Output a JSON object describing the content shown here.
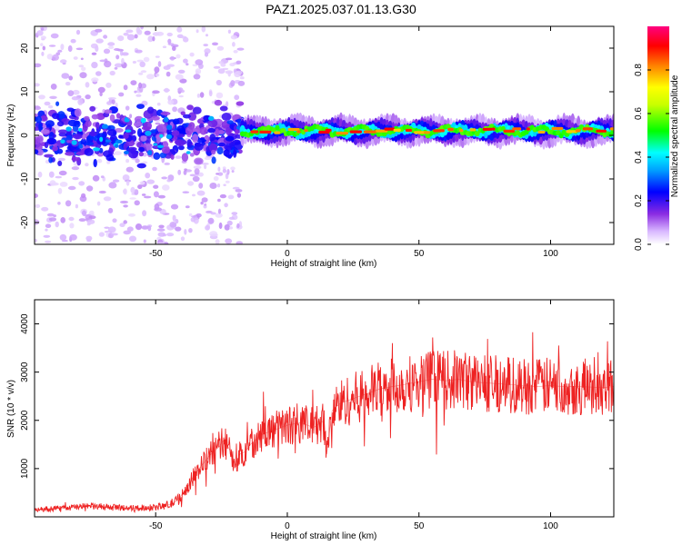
{
  "title": "PAZ1.2025.037.01.13.G30",
  "chart_data": [
    {
      "type": "heatmap",
      "xlabel": "Height of straight line (km)",
      "ylabel": "Frequency (Hz)",
      "xlim": [
        -96,
        124
      ],
      "ylim": [
        -25,
        25
      ],
      "xticks": [
        -50,
        0,
        50,
        100
      ],
      "yticks": [
        -20,
        -10,
        0,
        10,
        20
      ],
      "colorbar": {
        "label": "Normalized spectral amplitude",
        "range": [
          0,
          1
        ],
        "ticks": [
          "0.0",
          "0.2",
          "0.4",
          "0.6",
          "0.8"
        ],
        "colormap": [
          "#ffffff",
          "#8a2be2",
          "#0000ff",
          "#00ffff",
          "#00ff00",
          "#ffff00",
          "#ff8000",
          "#ff0000",
          "#ff0080"
        ]
      },
      "features": {
        "scatter_region_x": [
          -96,
          -17
        ],
        "scatter_spread_hz": 25,
        "coherent_line_x": [
          -17,
          124
        ],
        "coherent_line_freq_hz": 1
      }
    },
    {
      "type": "line",
      "xlabel": "Height of straight line (km)",
      "ylabel": "SNR (10 * v/v)",
      "xlim": [
        -96,
        124
      ],
      "ylim": [
        0,
        4500
      ],
      "xticks": [
        -50,
        0,
        50,
        100
      ],
      "yticks": [
        1000,
        2000,
        3000,
        4000
      ],
      "color": "#ee2222",
      "series": [
        {
          "x": [
            -96,
            -85,
            -75,
            -65,
            -55,
            -50,
            -45,
            -42,
            -38,
            -35,
            -32,
            -29,
            -26,
            -24,
            -22,
            -20,
            -18,
            -16,
            -14,
            -12,
            -10,
            -5,
            0,
            5,
            10,
            14,
            15,
            17,
            20,
            25,
            30,
            35,
            40,
            45,
            50,
            55,
            60,
            65,
            70,
            75,
            80,
            85,
            90,
            95,
            100,
            105,
            110,
            115,
            120,
            124
          ],
          "values": [
            150,
            180,
            220,
            190,
            180,
            200,
            250,
            330,
            600,
            900,
            1100,
            1300,
            1450,
            1600,
            1400,
            1000,
            1300,
            1350,
            1500,
            1600,
            1700,
            1800,
            1900,
            1950,
            1850,
            2000,
            1300,
            2200,
            2350,
            2450,
            2550,
            2650,
            2700,
            2750,
            2800,
            2850,
            2820,
            2850,
            2800,
            2780,
            2760,
            2740,
            2720,
            2700,
            2720,
            2700,
            2700,
            2690,
            2680,
            2700
          ]
        }
      ]
    }
  ]
}
